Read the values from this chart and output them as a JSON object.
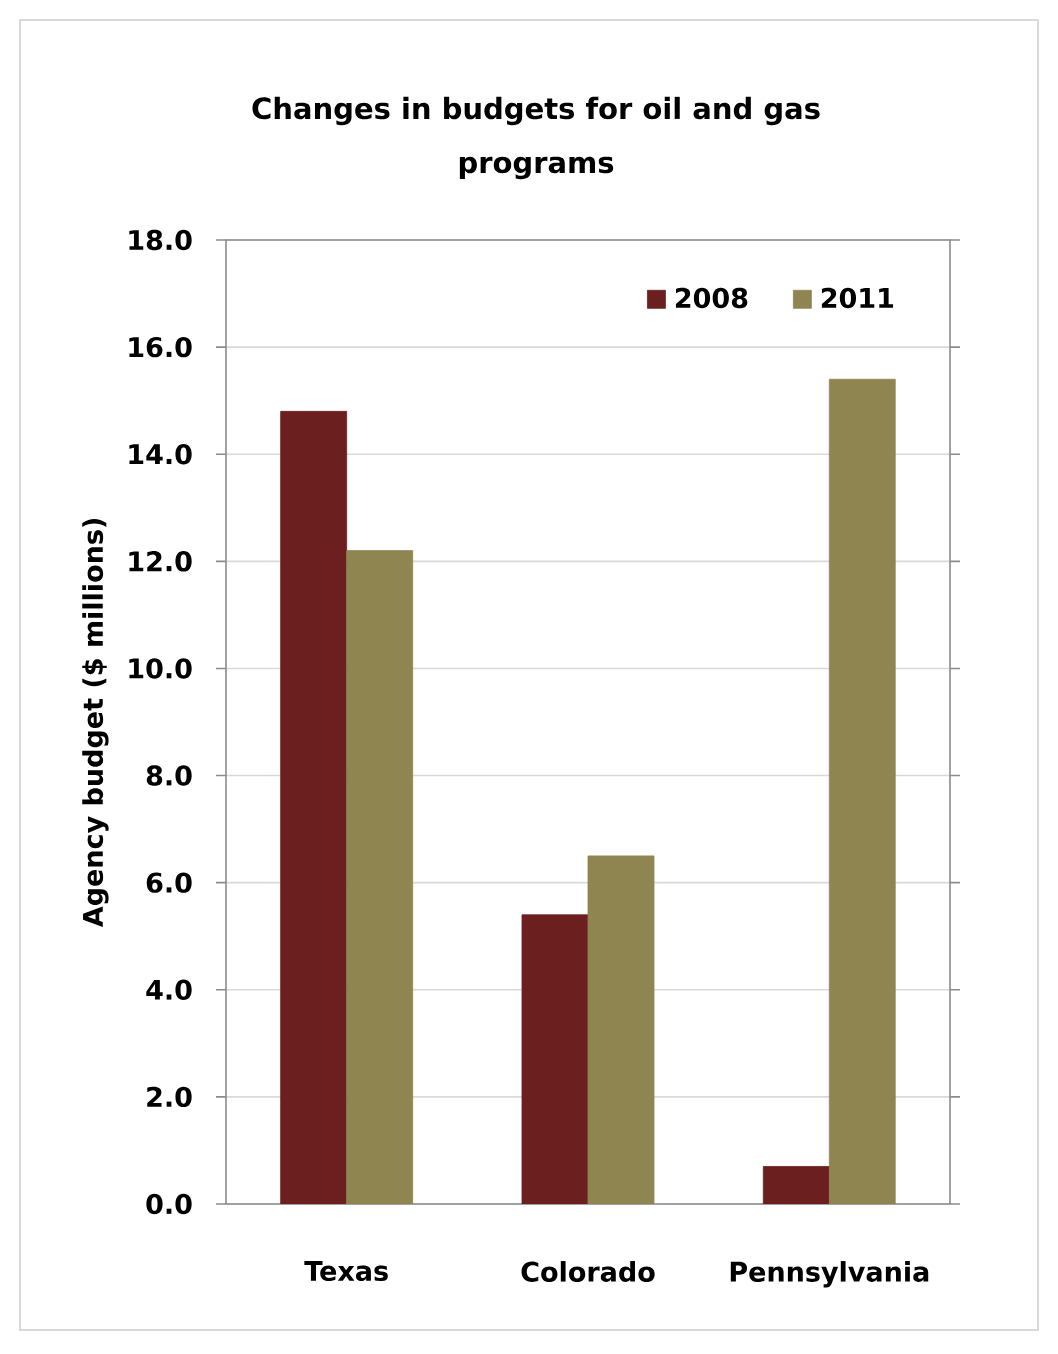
{
  "chart_data": {
    "type": "bar",
    "title": "Changes in budgets for oil and gas programs",
    "ylabel": "Agency budget ($ millions)",
    "categories": [
      "Texas",
      "Colorado",
      "Pennsylvania"
    ],
    "series": [
      {
        "name": "2008",
        "color": "#6b1f1f",
        "values": [
          14.8,
          5.4,
          0.7
        ]
      },
      {
        "name": "2011",
        "color": "#8f8550",
        "values": [
          12.2,
          6.5,
          15.4
        ]
      }
    ],
    "ylim": [
      0,
      18
    ],
    "yticks": [
      {
        "value": 0,
        "label": "0.0"
      },
      {
        "value": 2,
        "label": "2.0"
      },
      {
        "value": 4,
        "label": "4.0"
      },
      {
        "value": 6,
        "label": "6.0"
      },
      {
        "value": 8,
        "label": "8.0"
      },
      {
        "value": 10,
        "label": "10.0"
      },
      {
        "value": 12,
        "label": "12.0"
      },
      {
        "value": 14,
        "label": "14.0"
      },
      {
        "value": 16,
        "label": "16.0"
      },
      {
        "value": 18,
        "label": "18.0"
      }
    ],
    "grid": "y",
    "legend": "top right"
  }
}
